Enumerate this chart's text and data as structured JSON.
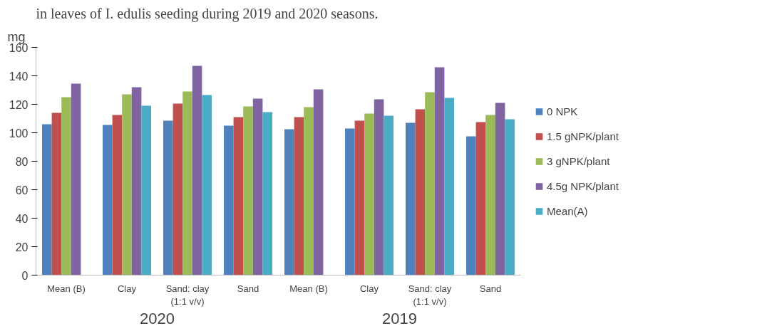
{
  "chart_data": {
    "type": "bar",
    "title": "in leaves of I. edulis seeding during 2019 and 2020 seasons.",
    "ylabel": "mg",
    "categories": [
      "Mean (B)",
      "Clay",
      "Sand: clay\n(1:1 v/v)",
      "Sand",
      "Mean (B)",
      "Clay",
      "Sand: clay\n(1:1 v/v)",
      "Sand"
    ],
    "annotations": [
      "2020",
      "2019"
    ],
    "series": [
      {
        "name": "0 NPK",
        "color": "#4f81bd",
        "values": [
          106,
          105.5,
          108.5,
          105,
          102.5,
          103,
          107,
          97.5
        ]
      },
      {
        "name": "1.5 gNPK/plant",
        "color": "#c0504d",
        "values": [
          114,
          112.5,
          120.5,
          111,
          111,
          108.5,
          116.5,
          107.5
        ]
      },
      {
        "name": "3 gNPK/plant",
        "color": "#9bbb59",
        "values": [
          125,
          127,
          129,
          118.5,
          118,
          113.5,
          128.5,
          112.5
        ]
      },
      {
        "name": "4.5g NPK/plant",
        "color": "#8064a2",
        "values": [
          134.5,
          132,
          147,
          124,
          130.5,
          123.5,
          146,
          121
        ]
      },
      {
        "name": "Mean(A)",
        "color": "#4bacc6",
        "values": [
          null,
          119,
          126.5,
          114.5,
          null,
          112,
          124.5,
          109.5
        ]
      }
    ],
    "ylim": [
      0,
      160
    ],
    "yticks": [
      0,
      20,
      40,
      60,
      80,
      100,
      120,
      140,
      160
    ],
    "grid": false,
    "legend": "right"
  }
}
